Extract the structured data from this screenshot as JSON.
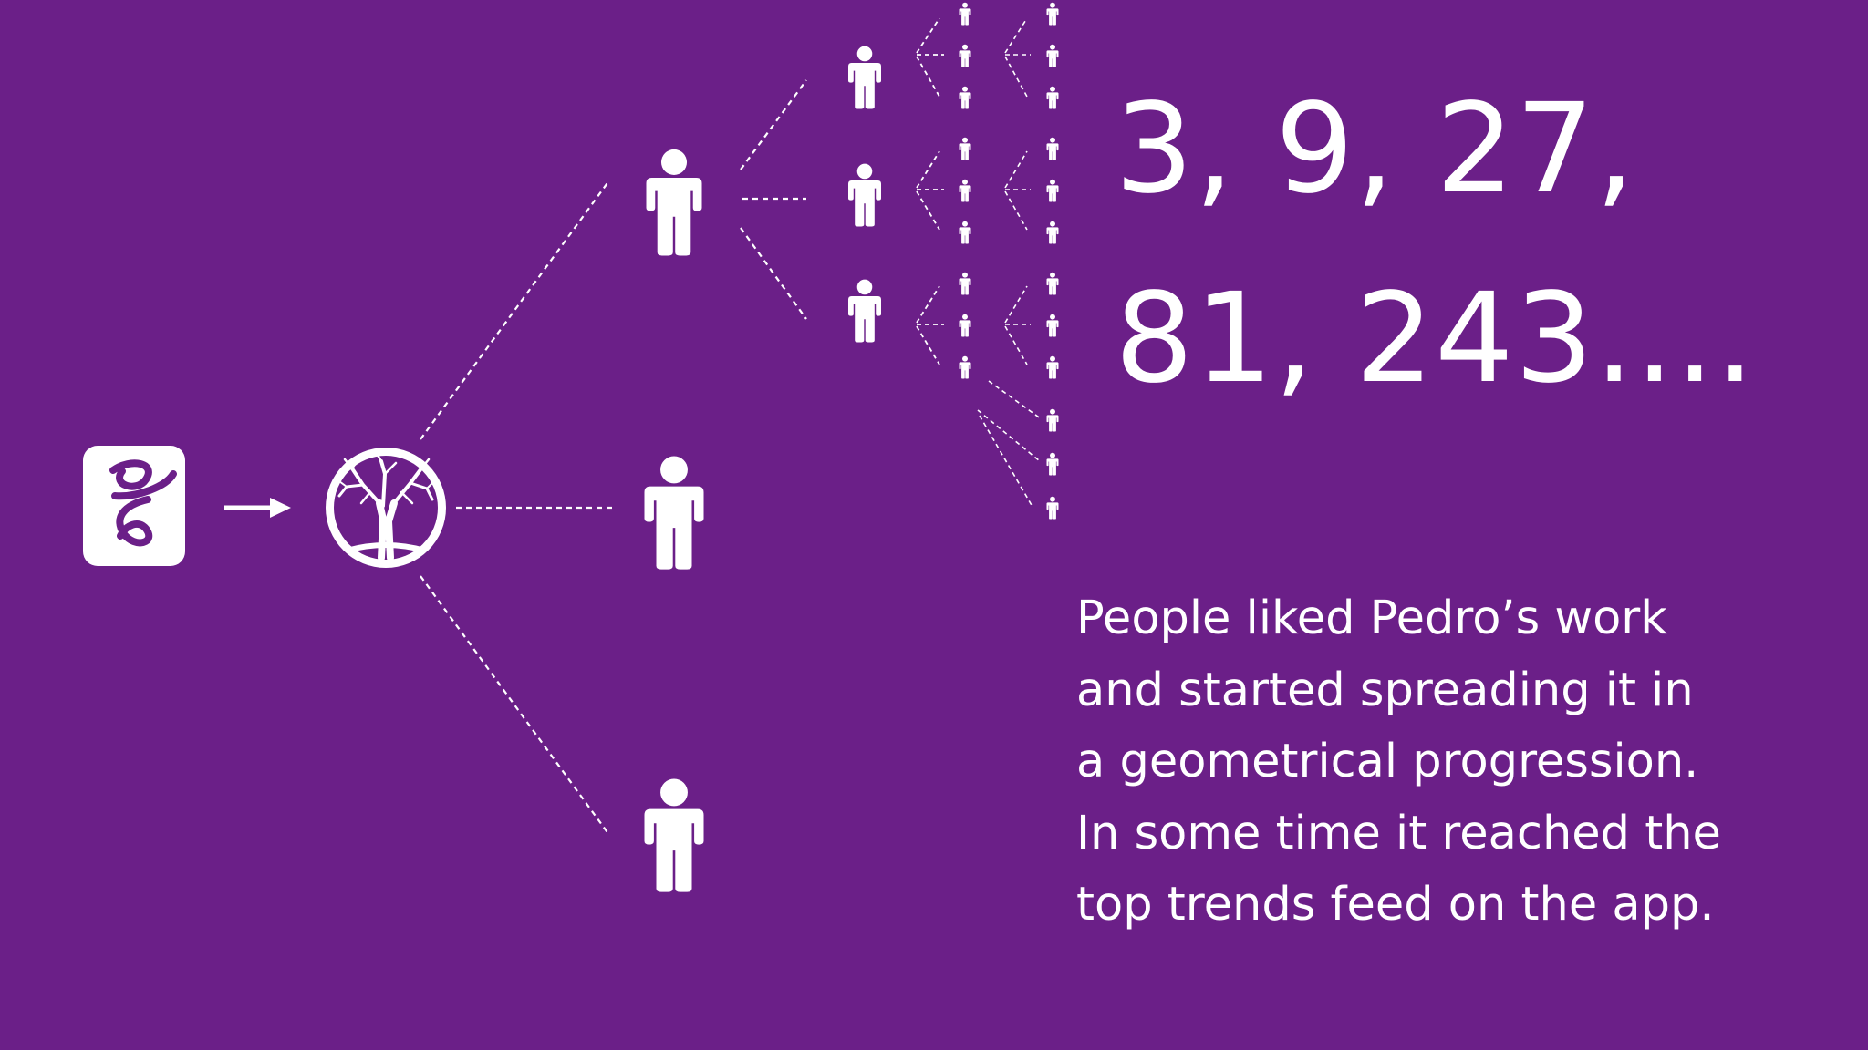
{
  "colors": {
    "background": "#6b1f88",
    "foreground": "#ffffff"
  },
  "icons": {
    "app_logo": "app-logo-icon",
    "arrow": "arrow-right-icon",
    "tree": "tree-circle-icon",
    "person": "person-icon"
  },
  "sequence": {
    "line1": "3, 9, 27,",
    "line2": "81, 243...."
  },
  "caption": {
    "lines": [
      "People liked Pedro’s work",
      "and started spreading it in",
      "a geometrical progression.",
      "In some time it reached the",
      "top trends feed on the app."
    ]
  }
}
